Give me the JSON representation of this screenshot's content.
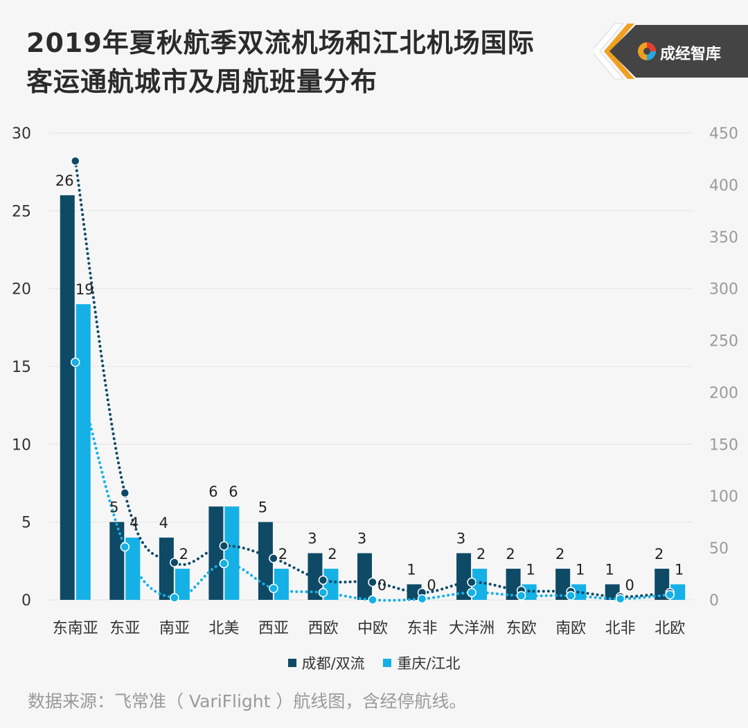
{
  "title_lines": [
    "2019年夏秋航季双流机场和江北机场国际",
    "客运通航城市及周航班量分布"
  ],
  "brand": {
    "name": "成经智库",
    "color": "#f0a020"
  },
  "source": "数据来源：飞常准（ VariFlight ）航线图，含经停航线。",
  "colors": {
    "chengdu": "#0e4a66",
    "chongqing": "#15b0e6",
    "grid": "#e4e4e4",
    "axis_text": "#555555"
  },
  "chart_data": {
    "type": "bar",
    "categories": [
      "东南亚",
      "东亚",
      "南亚",
      "北美",
      "西亚",
      "西欧",
      "中欧",
      "东非",
      "大洋洲",
      "东欧",
      "南欧",
      "北非",
      "北欧"
    ],
    "series": [
      {
        "name": "成都/双流",
        "values": [
          26,
          5,
          4,
          6,
          5,
          3,
          3,
          1,
          3,
          2,
          2,
          1,
          2
        ]
      },
      {
        "name": "重庆/江北",
        "values": [
          19,
          4,
          2,
          6,
          2,
          2,
          0,
          0,
          2,
          1,
          1,
          0,
          1
        ]
      }
    ],
    "secondary_series": [
      {
        "series": "成都/双流",
        "type": "line",
        "style": "dotted",
        "axis": "right",
        "values": [
          423,
          103,
          36,
          52,
          40,
          19,
          17,
          7,
          17,
          9,
          8,
          3,
          7
        ]
      },
      {
        "series": "重庆/江北",
        "type": "line",
        "style": "dotted",
        "axis": "right",
        "values": [
          229,
          51,
          2,
          35,
          11,
          7,
          0,
          1,
          7,
          4,
          4,
          1,
          5
        ]
      }
    ],
    "ylim": [
      0,
      30
    ],
    "yticks": [
      "0",
      "5",
      "10",
      "15",
      "20",
      "25",
      "30"
    ],
    "y2lim": [
      0,
      450
    ],
    "y2ticks": [
      "0",
      "50",
      "100",
      "150",
      "200",
      "250",
      "300",
      "350",
      "400",
      "450"
    ],
    "grid": true,
    "legend": "bottom"
  }
}
